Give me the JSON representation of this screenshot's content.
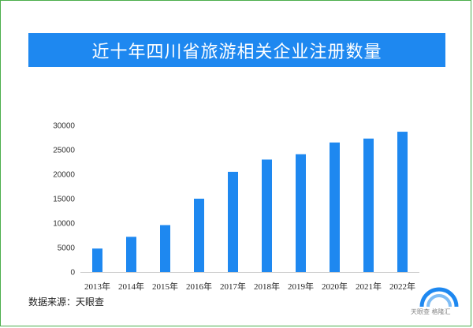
{
  "title": "近十年四川省旅游相关企业注册数量",
  "source": "数据来源：天眼查",
  "watermark": "天眼查",
  "watermark_overlay": "格隆汇",
  "colors": {
    "bar": "#1e88f0",
    "title_bg": "#1e88f0",
    "frame": "#4cae4c"
  },
  "chart_data": {
    "type": "bar",
    "categories": [
      "2013年",
      "2014年",
      "2015年",
      "2016年",
      "2017年",
      "2018年",
      "2019年",
      "2020年",
      "2021年",
      "2022年"
    ],
    "values": [
      4800,
      7200,
      9600,
      15000,
      20500,
      23000,
      24100,
      26500,
      27300,
      28700
    ],
    "yticks": [
      0,
      5000,
      10000,
      15000,
      20000,
      25000,
      30000
    ],
    "ylim": [
      0,
      30000
    ],
    "grid": false,
    "legend": false
  }
}
